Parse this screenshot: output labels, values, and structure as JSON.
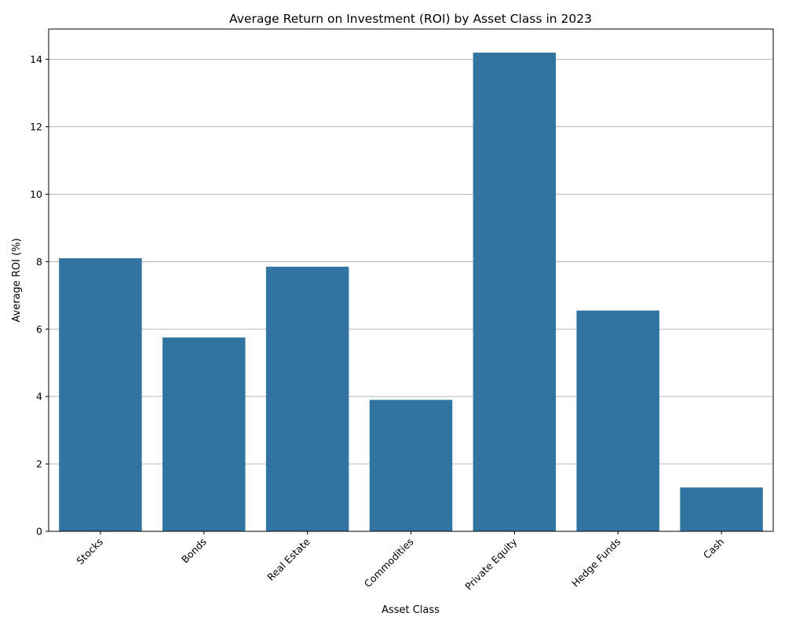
{
  "chart_data": {
    "type": "bar",
    "title": "Average Return on Investment (ROI) by Asset Class in 2023",
    "xlabel": "Asset Class",
    "ylabel": "Average ROI (%)",
    "categories": [
      "Stocks",
      "Bonds",
      "Real Estate",
      "Commodities",
      "Private Equity",
      "Hedge Funds",
      "Cash"
    ],
    "values": [
      8.1,
      5.75,
      7.85,
      3.9,
      14.2,
      6.55,
      1.3
    ],
    "ylim": [
      0,
      14.9
    ],
    "yticks": [
      0,
      2,
      4,
      6,
      8,
      10,
      12,
      14
    ],
    "grid": "horizontal",
    "bar_color": "#3274a1"
  }
}
